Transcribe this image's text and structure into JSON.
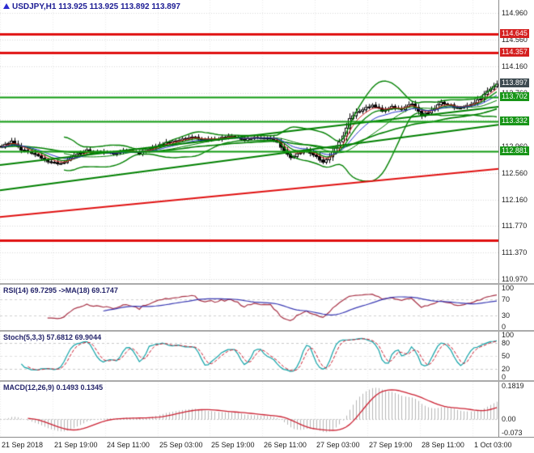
{
  "title": {
    "symbol": "USDJPY,H1",
    "ohlc": "113.925 113.925 113.892 113.897"
  },
  "colors": {
    "background": "#ffffff",
    "bull_candle": "#ffffff",
    "bear_candle": "#000000",
    "candle_border": "#000000",
    "overlay_green": "#008000",
    "overlay_red": "#d22222",
    "overlay_blue": "#2233cc",
    "level_red": "#e01010",
    "level_green": "#0f9a0f",
    "badge_red": "#d42020",
    "badge_green": "#189518",
    "badge_dark": "#3d4a50",
    "grid": "#d9d9d9",
    "rsi_line": "#a83246",
    "rsi_ma": "#3b3bb4",
    "stoch_k": "#12a3a8",
    "stoch_d": "#cc2233",
    "macd_hist": "#b6b6b6",
    "macd_signal": "#cc2233",
    "axis_text": "#1e1e1e",
    "title_text": "#1c1c94"
  },
  "chart_data": {
    "type": "candlestick",
    "symbol": "USDJPY",
    "timeframe": "H1",
    "bars": 152,
    "price_top": 115.15,
    "price_bottom": 110.91,
    "current_price": 113.897,
    "y_ticks": [
      "114.960",
      "114.560",
      "114.160",
      "113.760",
      "113.360",
      "112.960",
      "112.560",
      "112.160",
      "111.770",
      "111.370",
      "110.970"
    ],
    "time_labels": [
      "21 Sep 2018",
      "21 Sep 19:00",
      "24 Sep 11:00",
      "25 Sep 03:00",
      "25 Sep 19:00",
      "26 Sep 11:00",
      "27 Sep 03:00",
      "27 Sep 19:00",
      "28 Sep 11:00",
      "1 Oct 03:00"
    ],
    "bars_per_time_label": 16,
    "close_anchors": [
      [
        0,
        112.96
      ],
      [
        3,
        113.05
      ],
      [
        6,
        112.92
      ],
      [
        10,
        112.84
      ],
      [
        14,
        112.73
      ],
      [
        18,
        112.7
      ],
      [
        22,
        112.82
      ],
      [
        26,
        112.9
      ],
      [
        30,
        112.88
      ],
      [
        34,
        112.85
      ],
      [
        38,
        112.91
      ],
      [
        42,
        112.86
      ],
      [
        46,
        112.95
      ],
      [
        50,
        113.02
      ],
      [
        54,
        113.06
      ],
      [
        58,
        113.1
      ],
      [
        62,
        113.05
      ],
      [
        66,
        113.08
      ],
      [
        70,
        113.12
      ],
      [
        74,
        113.06
      ],
      [
        78,
        113.1
      ],
      [
        82,
        113.08
      ],
      [
        84,
        113.02
      ],
      [
        86,
        112.88
      ],
      [
        88,
        112.79
      ],
      [
        91,
        112.87
      ],
      [
        93,
        112.9
      ],
      [
        95,
        112.84
      ],
      [
        98,
        112.73
      ],
      [
        100,
        112.8
      ],
      [
        102,
        112.95
      ],
      [
        104,
        113.12
      ],
      [
        106,
        113.38
      ],
      [
        108,
        113.46
      ],
      [
        110,
        113.52
      ],
      [
        113,
        113.58
      ],
      [
        116,
        113.5
      ],
      [
        119,
        113.56
      ],
      [
        122,
        113.52
      ],
      [
        125,
        113.6
      ],
      [
        128,
        113.43
      ],
      [
        131,
        113.5
      ],
      [
        134,
        113.62
      ],
      [
        137,
        113.57
      ],
      [
        140,
        113.53
      ],
      [
        143,
        113.6
      ],
      [
        146,
        113.68
      ],
      [
        148,
        113.78
      ],
      [
        150,
        113.87
      ],
      [
        151,
        113.897
      ]
    ],
    "levels": [
      {
        "price": 114.645,
        "label": "114.645",
        "style": "red",
        "line_width": 3
      },
      {
        "price": 114.357,
        "label": "114.357",
        "style": "red",
        "line_width": 3
      },
      {
        "price": 113.897,
        "label": "113.897",
        "style": "dark",
        "line_width": 0
      },
      {
        "price": 113.702,
        "label": "113.702",
        "style": "green",
        "line_width": 2
      },
      {
        "price": 113.332,
        "label": "113.332",
        "style": "green",
        "line_width": 2
      },
      {
        "price": 112.881,
        "label": "112.881",
        "style": "green",
        "line_width": 2
      },
      {
        "price": 111.55,
        "label": "",
        "style": "red",
        "line_width": 3
      }
    ],
    "trendlines": [
      {
        "from_price": 111.9,
        "to_price": 112.62,
        "style": "red",
        "line_width": 2
      },
      {
        "from_price": 112.68,
        "to_price": 113.55,
        "style": "green",
        "line_width": 2
      },
      {
        "from_price": 112.3,
        "to_price": 113.28,
        "style": "green",
        "line_width": 2
      }
    ],
    "overlays": {
      "bb_period": 20,
      "bb_dev": 2.2,
      "ma_fast": 8,
      "ma_slow": 48,
      "ma_red": 5,
      "ma_blue": 13
    },
    "indicators": {
      "rsi": {
        "label": "RSI(14) 69.7295 ->MA(18) 69.1747",
        "period": 14,
        "ma_period": 18,
        "levels": [
          70,
          30
        ],
        "ticks": [
          "100",
          "70",
          "30",
          "0"
        ],
        "last": 69.7295,
        "ma_last": 69.1747
      },
      "stoch": {
        "label": "Stoch(5,3,3) 57.6812 69.9044",
        "k": 5,
        "slowing": 3,
        "d": 3,
        "levels": [
          80,
          50,
          20
        ],
        "ticks": [
          "100",
          "80",
          "50",
          "20",
          "0"
        ],
        "last_k": 57.6812,
        "last_d": 69.9044
      },
      "macd": {
        "label": "MACD(12,26,9) 0.1493 0.1345",
        "fast": 12,
        "slow": 26,
        "signal": 9,
        "max": 0.1819,
        "min": -0.073,
        "ticks": [
          "0.1819",
          "0.00",
          "-0.073"
        ],
        "last": 0.1493,
        "last_signal": 0.1345
      }
    }
  }
}
